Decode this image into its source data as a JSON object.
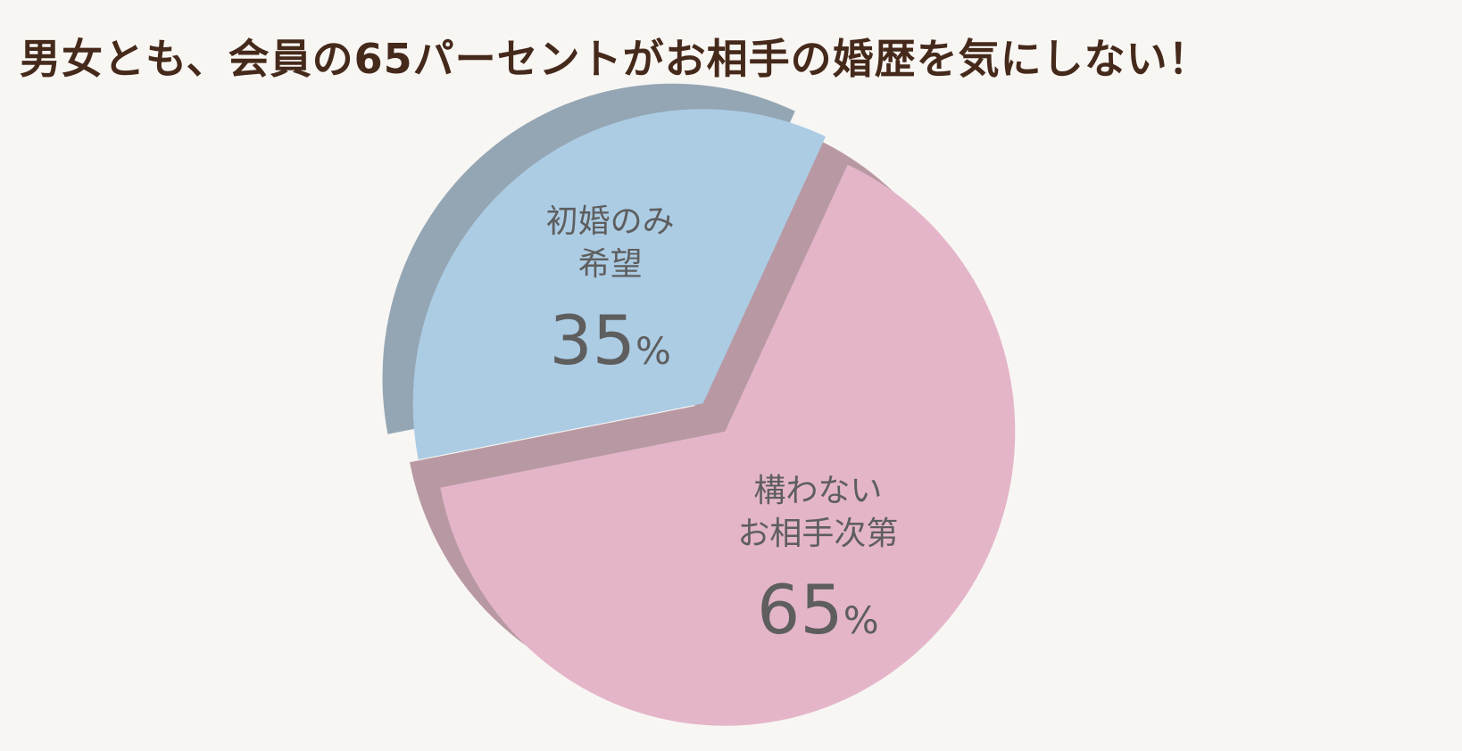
{
  "title": "男女とも、会員の65パーセントがお相手の婚歴を気にしない！",
  "chart_data": {
    "type": "pie",
    "title": "男女とも、会員の65パーセントがお相手の婚歴を気にしない！",
    "slices": [
      {
        "label_lines": [
          "構わない",
          "お相手次第"
        ],
        "value": 65,
        "unit": "%",
        "color": "#e4b5c9",
        "side_color": "#b899a3"
      },
      {
        "label_lines": [
          "初婚のみ",
          "希望"
        ],
        "value": 35,
        "unit": "%",
        "color": "#acccE4",
        "side_color": "#94a6b4"
      }
    ]
  }
}
